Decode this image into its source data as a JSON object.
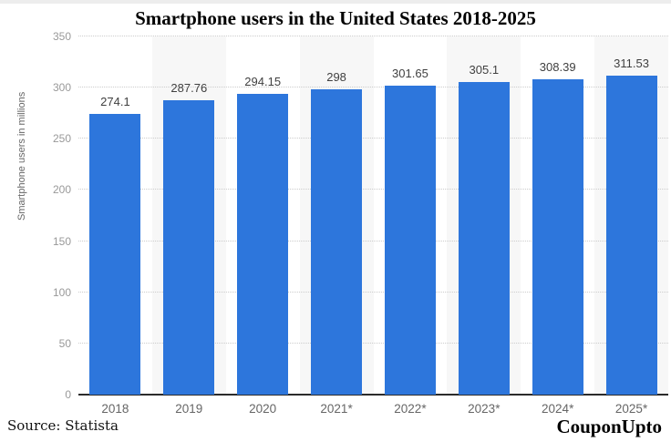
{
  "page": {
    "title": "Smartphone users in the United States 2018-2025",
    "source_text": "Source: Statista",
    "brand": "CouponUpto"
  },
  "colors": {
    "bar": "#2d76dc",
    "band": "#f7f7f7",
    "grid": "#cccccc",
    "axis": "#2b2b2b",
    "ytick_label": "#999999",
    "xtick_label": "#666666",
    "value_label": "#404040"
  },
  "chart_data": {
    "type": "bar",
    "title": "Smartphone users in the United States 2018-2025",
    "categories": [
      "2018",
      "2019",
      "2020",
      "2021*",
      "2022*",
      "2023*",
      "2024*",
      "2025*"
    ],
    "values": [
      274.1,
      287.76,
      294.15,
      298,
      301.65,
      305.1,
      308.39,
      311.53
    ],
    "value_labels": [
      "274.1",
      "287.76",
      "294.15",
      "298",
      "301.65",
      "305.1",
      "308.39",
      "311.53"
    ],
    "xlabel": "",
    "ylabel": "Smartphone users in millions",
    "ylim": [
      0,
      350
    ],
    "yticks": [
      0,
      50,
      100,
      150,
      200,
      250,
      300,
      350
    ],
    "grid": "horizontal-dotted",
    "legend": "none",
    "alternating_column_bands": true,
    "bands_on_categories": [
      "2019",
      "2021*",
      "2023*",
      "2025*"
    ]
  }
}
